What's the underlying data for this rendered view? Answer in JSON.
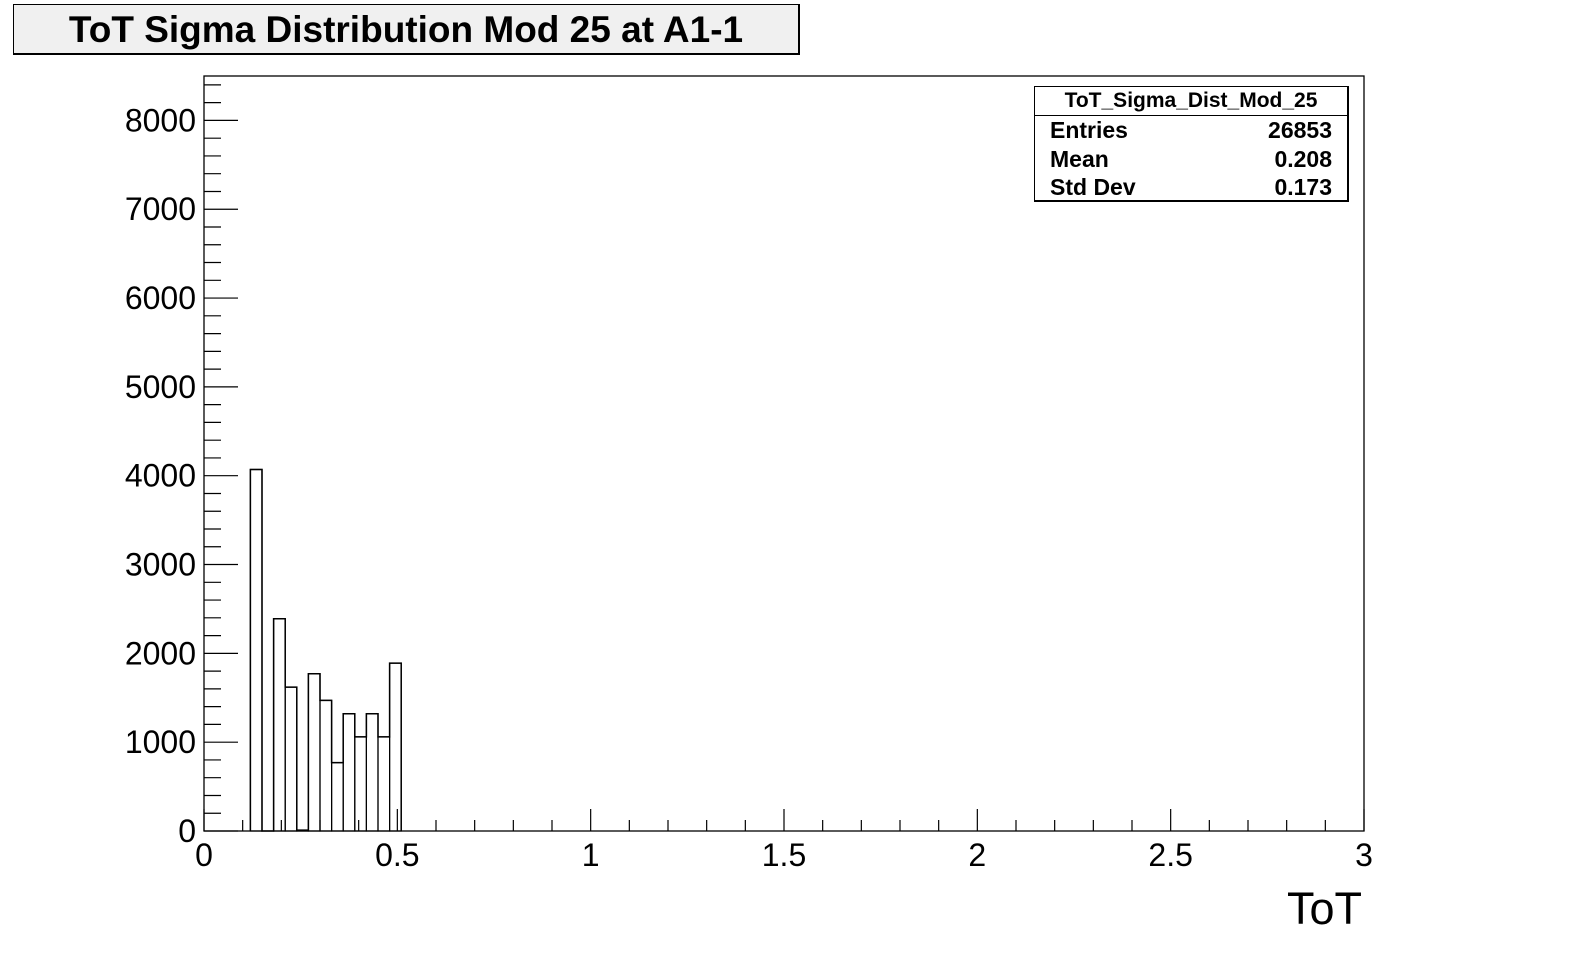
{
  "title": "ToT Sigma Distribution Mod 25 at A1-1",
  "stats": {
    "name": "ToT_Sigma_Dist_Mod_25",
    "rows": [
      {
        "label": "Entries",
        "value": "26853"
      },
      {
        "label": "Mean",
        "value": "0.208"
      },
      {
        "label": "Std Dev",
        "value": "0.173"
      }
    ]
  },
  "chart_data": {
    "type": "histogram",
    "title": "ToT Sigma Distribution Mod 25 at A1-1",
    "xlabel": "ToT",
    "ylabel": "",
    "xlim": [
      0,
      3
    ],
    "ylim": [
      0,
      8500
    ],
    "xticks": [
      "0",
      "0.5",
      "1",
      "1.5",
      "2",
      "2.5",
      "3"
    ],
    "yticks": [
      "0",
      "1000",
      "2000",
      "3000",
      "4000",
      "5000",
      "6000",
      "7000",
      "8000"
    ],
    "bin_width": 0.03,
    "bins": [
      {
        "x0": 0.12,
        "value": 4070
      },
      {
        "x0": 0.15,
        "value": 0
      },
      {
        "x0": 0.18,
        "value": 2390
      },
      {
        "x0": 0.21,
        "value": 1620
      },
      {
        "x0": 0.24,
        "value": 10
      },
      {
        "x0": 0.27,
        "value": 1770
      },
      {
        "x0": 0.3,
        "value": 1470
      },
      {
        "x0": 0.33,
        "value": 770
      },
      {
        "x0": 0.36,
        "value": 1320
      },
      {
        "x0": 0.39,
        "value": 1060
      },
      {
        "x0": 0.42,
        "value": 1320
      },
      {
        "x0": 0.45,
        "value": 1060
      },
      {
        "x0": 0.48,
        "value": 1890
      }
    ],
    "grid": false,
    "legend": "stats box top-right"
  }
}
